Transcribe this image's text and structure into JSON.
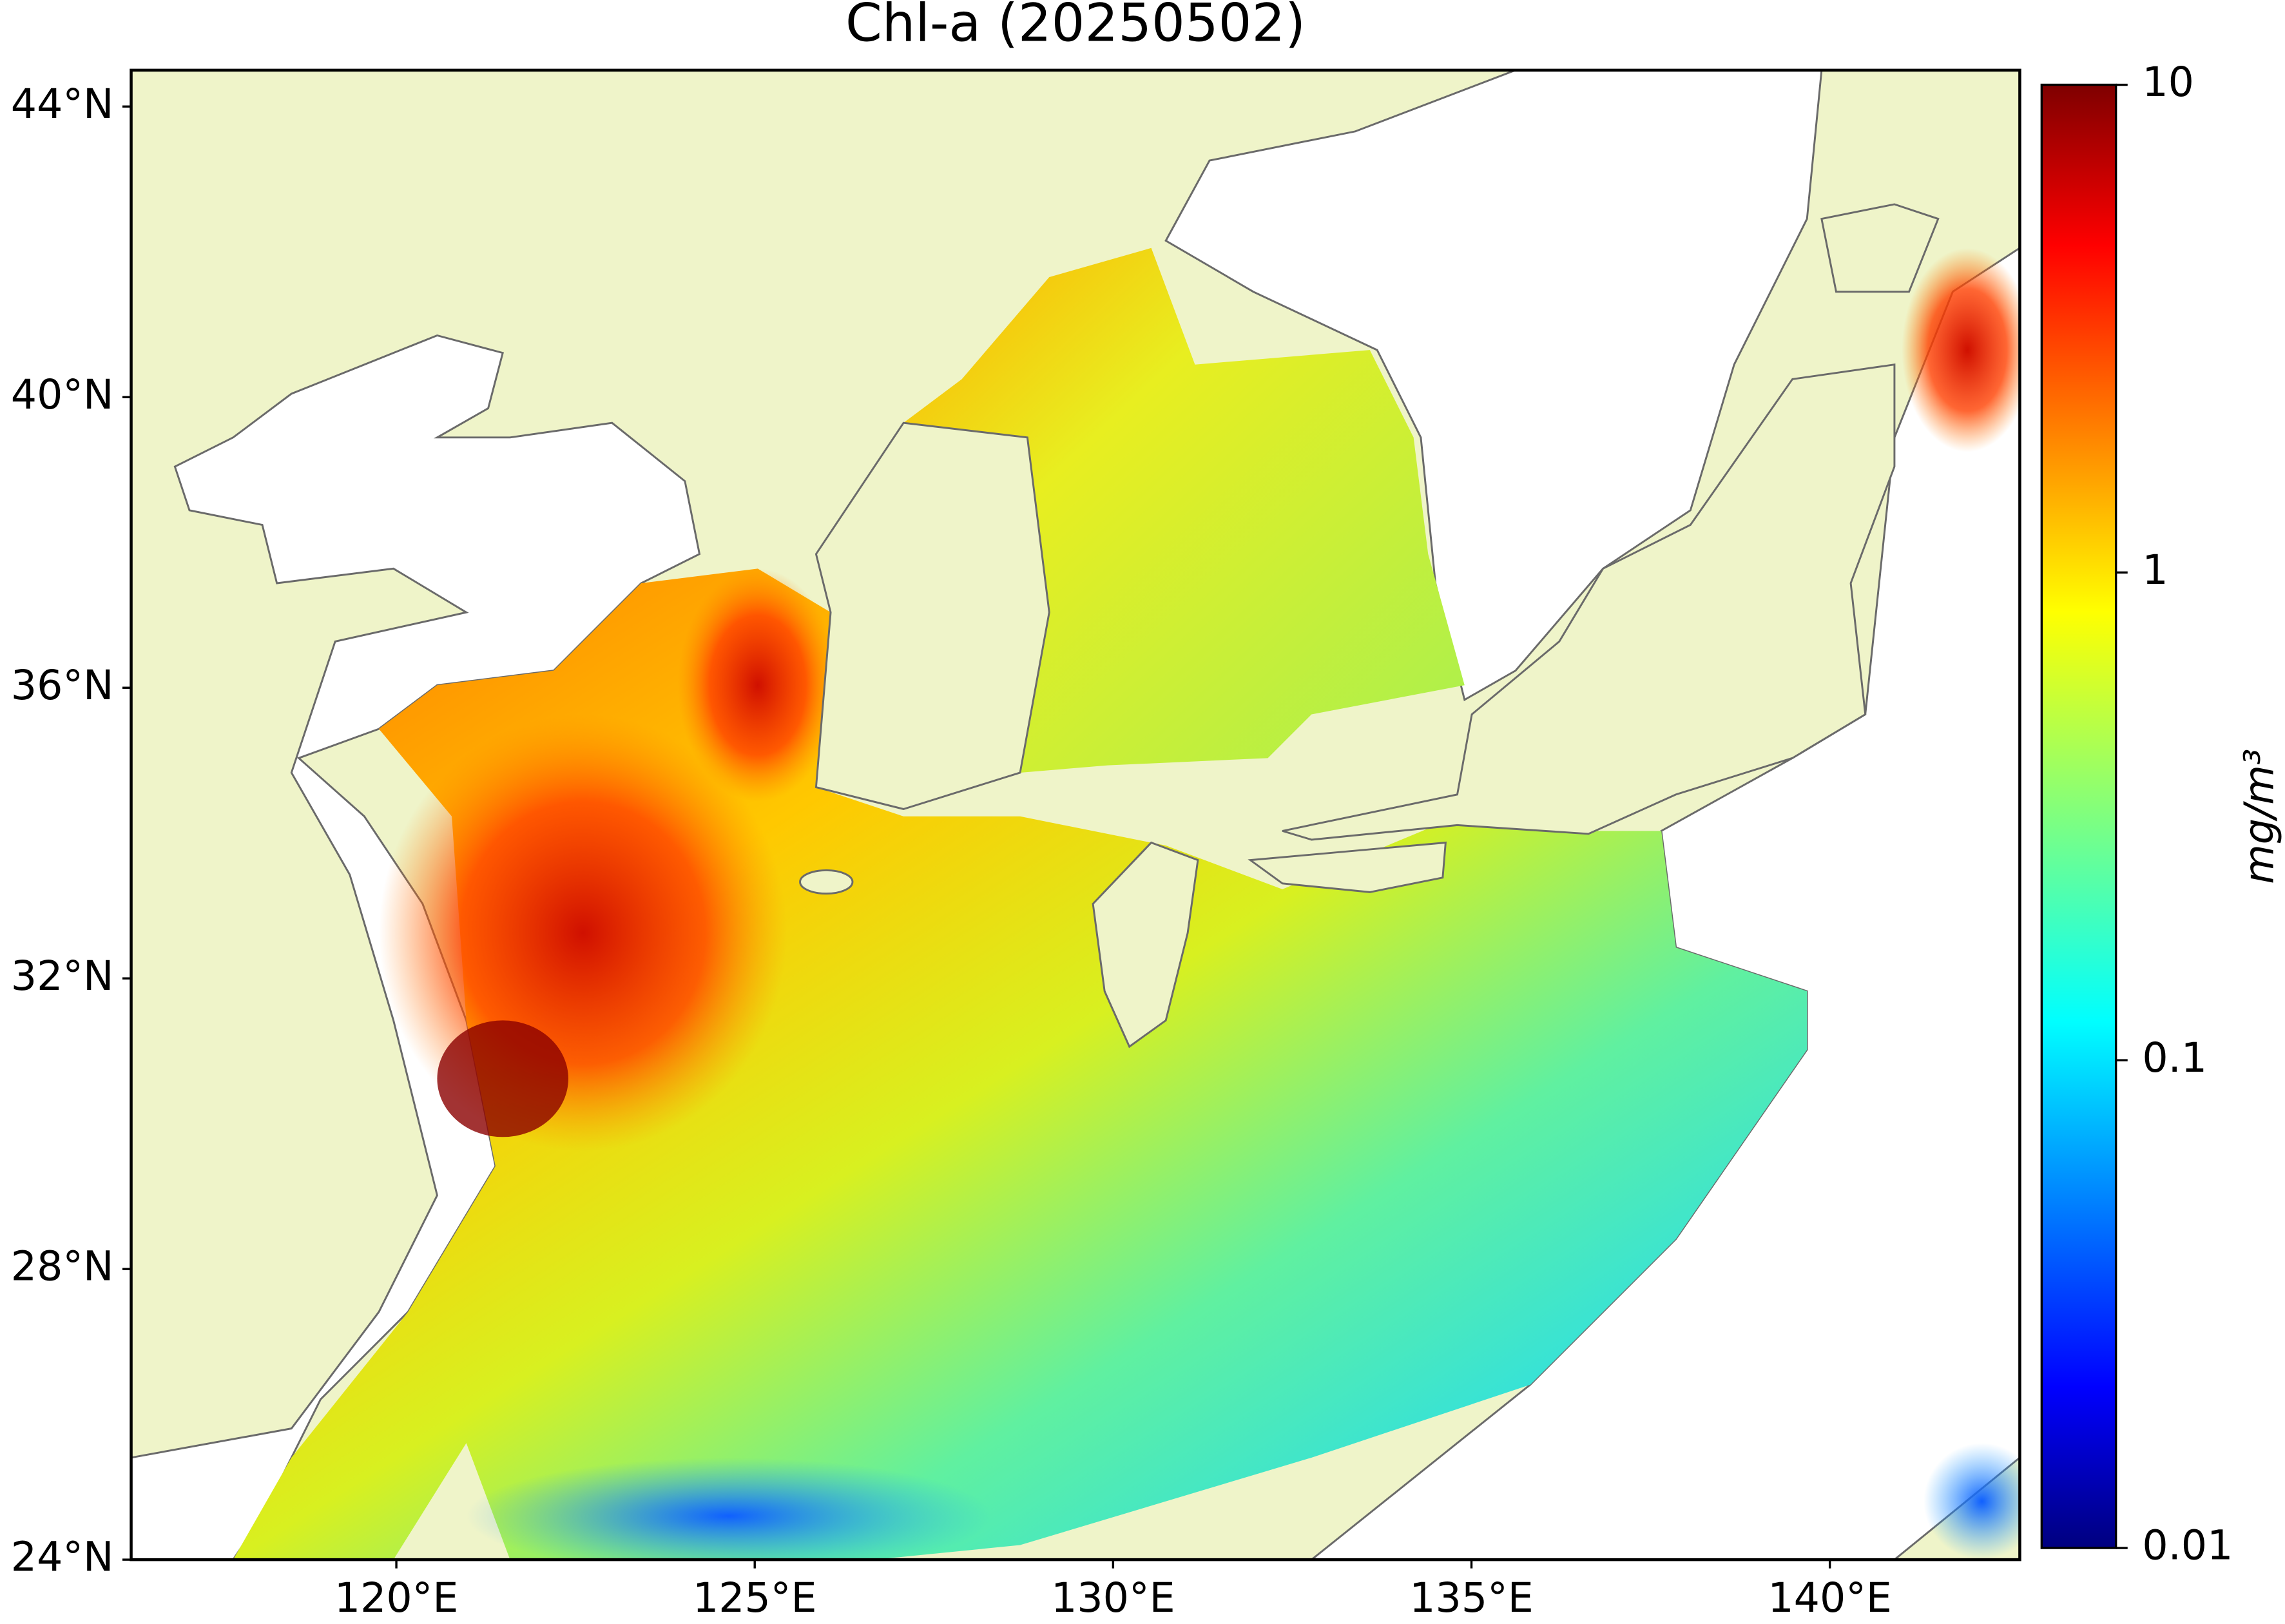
{
  "chart_data": {
    "type": "map",
    "title": "Chl-a (20250502)",
    "xlim": [
      116.3,
      142.65
    ],
    "ylim": [
      24,
      44.5
    ],
    "xticks": [
      {
        "value": 120,
        "label": "120°E"
      },
      {
        "value": 125,
        "label": "125°E"
      },
      {
        "value": 130,
        "label": "130°E"
      },
      {
        "value": 135,
        "label": "135°E"
      },
      {
        "value": 140,
        "label": "140°E"
      }
    ],
    "yticks": [
      {
        "value": 24,
        "label": "24°N"
      },
      {
        "value": 28,
        "label": "28°N"
      },
      {
        "value": 32,
        "label": "32°N"
      },
      {
        "value": 36,
        "label": "36°N"
      },
      {
        "value": 40,
        "label": "40°N"
      },
      {
        "value": 44,
        "label": "44°N"
      }
    ],
    "colorbar": {
      "label": "mg/m³",
      "scale": "log",
      "colormap": "jet",
      "lim": [
        0.01,
        10
      ],
      "ticks": [
        0.01,
        0.1,
        1,
        10
      ]
    }
  }
}
